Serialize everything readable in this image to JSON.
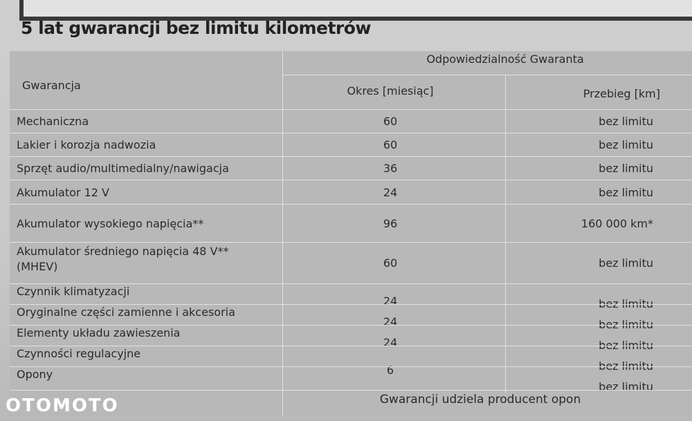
{
  "title": "5 lat gwarancji bez limitu kilometrów",
  "header": {
    "group": "Odpowiedzialność Gwaranta",
    "col1": "Gwarancja",
    "col2": "Okres [miesiąc]",
    "col3": "Przebieg [km]"
  },
  "rows": [
    {
      "name": "Mechaniczna",
      "period": "60",
      "mileage": "bez limitu"
    },
    {
      "name": "Lakier i korozja nadwozia",
      "period": "60",
      "mileage": "bez limitu"
    },
    {
      "name": "Sprzęt audio/multimedialny/nawigacja",
      "period": "36",
      "mileage": "bez limitu"
    },
    {
      "name": "Akumulator 12 V",
      "period": "24",
      "mileage": "bez limitu"
    },
    {
      "name": "Akumulator wysokiego napięcia**",
      "period": "96",
      "mileage": "160 000 km*"
    },
    {
      "name": "Akumulator średniego napięcia 48 V**",
      "name2": "(MHEV)",
      "period": "60",
      "mileage": "bez limitu"
    },
    {
      "name": "Czynnik klimatyzacji",
      "period": "24",
      "mileage": "bez limitu"
    },
    {
      "name": "Oryginalne części zamienne i akcesoria",
      "period": "24",
      "mileage": "bez limitu"
    },
    {
      "name": "Elementy układu zawieszenia",
      "period": "24",
      "mileage": "bez limitu"
    },
    {
      "name": "Czynności regulacyjne",
      "period": "6",
      "mileage": "bez limitu"
    },
    {
      "name": "Opony",
      "period": "",
      "mileage": "bez limitu"
    }
  ],
  "tires_note": "Gwarancji udziela producent opon",
  "watermark": "OTOMOTO"
}
